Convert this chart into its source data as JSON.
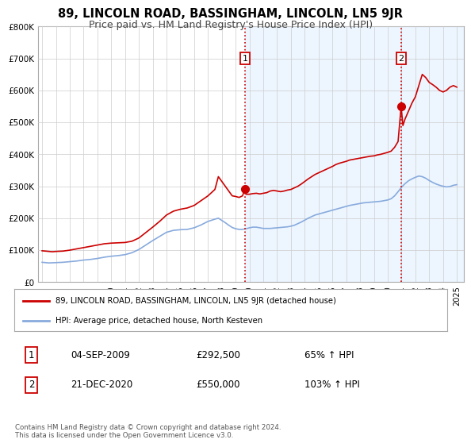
{
  "title": "89, LINCOLN ROAD, BASSINGHAM, LINCOLN, LN5 9JR",
  "subtitle": "Price paid vs. HM Land Registry's House Price Index (HPI)",
  "title_fontsize": 10.5,
  "subtitle_fontsize": 9,
  "ylabel_ticks": [
    "£0",
    "£100K",
    "£200K",
    "£300K",
    "£400K",
    "£500K",
    "£600K",
    "£700K",
    "£800K"
  ],
  "ytick_values": [
    0,
    100000,
    200000,
    300000,
    400000,
    500000,
    600000,
    700000,
    800000
  ],
  "ylim": [
    0,
    800000
  ],
  "xlim_start": 1994.7,
  "xlim_end": 2025.5,
  "xticks": [
    1995,
    1996,
    1997,
    1998,
    1999,
    2000,
    2001,
    2002,
    2003,
    2004,
    2005,
    2006,
    2007,
    2008,
    2009,
    2010,
    2011,
    2012,
    2013,
    2014,
    2015,
    2016,
    2017,
    2018,
    2019,
    2020,
    2021,
    2022,
    2023,
    2024,
    2025
  ],
  "grid_color": "#cccccc",
  "background_color": "#ffffff",
  "sale1_x": 2009.67,
  "sale1_y": 292500,
  "sale2_x": 2020.97,
  "sale2_y": 550000,
  "vline1_x": 2009.67,
  "vline2_x": 2020.97,
  "vline_color": "#cc0000",
  "shade_color": "#ddeeff",
  "red_line_color": "#cc0000",
  "blue_line_color": "#88aadd",
  "legend_red_label": "89, LINCOLN ROAD, BASSINGHAM, LINCOLN, LN5 9JR (detached house)",
  "legend_blue_label": "HPI: Average price, detached house, North Kesteven",
  "annotation1_date": "04-SEP-2009",
  "annotation1_price": "£292,500",
  "annotation1_hpi": "65% ↑ HPI",
  "annotation2_date": "21-DEC-2020",
  "annotation2_price": "£550,000",
  "annotation2_hpi": "103% ↑ HPI",
  "footer": "Contains HM Land Registry data © Crown copyright and database right 2024.\nThis data is licensed under the Open Government Licence v3.0.",
  "red_hpi_data": [
    [
      1995.0,
      98000
    ],
    [
      1995.25,
      97000
    ],
    [
      1995.5,
      96000
    ],
    [
      1995.75,
      95000
    ],
    [
      1996.0,
      96000
    ],
    [
      1996.5,
      97000
    ],
    [
      1997.0,
      100000
    ],
    [
      1997.5,
      104000
    ],
    [
      1998.0,
      108000
    ],
    [
      1998.5,
      112000
    ],
    [
      1999.0,
      116000
    ],
    [
      1999.5,
      120000
    ],
    [
      2000.0,
      122000
    ],
    [
      2000.5,
      123000
    ],
    [
      2001.0,
      124000
    ],
    [
      2001.5,
      128000
    ],
    [
      2002.0,
      138000
    ],
    [
      2002.5,
      155000
    ],
    [
      2003.0,
      172000
    ],
    [
      2003.5,
      190000
    ],
    [
      2004.0,
      210000
    ],
    [
      2004.5,
      222000
    ],
    [
      2005.0,
      228000
    ],
    [
      2005.5,
      232000
    ],
    [
      2006.0,
      240000
    ],
    [
      2006.5,
      255000
    ],
    [
      2007.0,
      270000
    ],
    [
      2007.25,
      280000
    ],
    [
      2007.5,
      290000
    ],
    [
      2007.75,
      330000
    ],
    [
      2008.0,
      315000
    ],
    [
      2008.25,
      300000
    ],
    [
      2008.5,
      285000
    ],
    [
      2008.75,
      270000
    ],
    [
      2009.0,
      268000
    ],
    [
      2009.25,
      265000
    ],
    [
      2009.5,
      270000
    ],
    [
      2009.67,
      292500
    ],
    [
      2009.75,
      275000
    ],
    [
      2010.0,
      275000
    ],
    [
      2010.25,
      277000
    ],
    [
      2010.5,
      278000
    ],
    [
      2010.75,
      276000
    ],
    [
      2011.0,
      278000
    ],
    [
      2011.25,
      280000
    ],
    [
      2011.5,
      285000
    ],
    [
      2011.75,
      287000
    ],
    [
      2012.0,
      285000
    ],
    [
      2012.25,
      283000
    ],
    [
      2012.5,
      285000
    ],
    [
      2012.75,
      288000
    ],
    [
      2013.0,
      290000
    ],
    [
      2013.25,
      295000
    ],
    [
      2013.5,
      300000
    ],
    [
      2013.75,
      307000
    ],
    [
      2014.0,
      315000
    ],
    [
      2014.25,
      323000
    ],
    [
      2014.5,
      330000
    ],
    [
      2014.75,
      337000
    ],
    [
      2015.0,
      342000
    ],
    [
      2015.25,
      347000
    ],
    [
      2015.5,
      352000
    ],
    [
      2015.75,
      357000
    ],
    [
      2016.0,
      362000
    ],
    [
      2016.25,
      368000
    ],
    [
      2016.5,
      372000
    ],
    [
      2016.75,
      375000
    ],
    [
      2017.0,
      378000
    ],
    [
      2017.25,
      382000
    ],
    [
      2017.5,
      384000
    ],
    [
      2017.75,
      386000
    ],
    [
      2018.0,
      388000
    ],
    [
      2018.25,
      390000
    ],
    [
      2018.5,
      392000
    ],
    [
      2018.75,
      394000
    ],
    [
      2019.0,
      395000
    ],
    [
      2019.25,
      398000
    ],
    [
      2019.5,
      400000
    ],
    [
      2019.75,
      403000
    ],
    [
      2020.0,
      406000
    ],
    [
      2020.25,
      410000
    ],
    [
      2020.5,
      422000
    ],
    [
      2020.75,
      440000
    ],
    [
      2020.97,
      550000
    ],
    [
      2021.1,
      490000
    ],
    [
      2021.25,
      510000
    ],
    [
      2021.5,
      535000
    ],
    [
      2021.75,
      560000
    ],
    [
      2022.0,
      580000
    ],
    [
      2022.25,
      615000
    ],
    [
      2022.5,
      650000
    ],
    [
      2022.75,
      640000
    ],
    [
      2023.0,
      625000
    ],
    [
      2023.25,
      618000
    ],
    [
      2023.5,
      610000
    ],
    [
      2023.75,
      600000
    ],
    [
      2024.0,
      595000
    ],
    [
      2024.25,
      600000
    ],
    [
      2024.5,
      610000
    ],
    [
      2024.75,
      615000
    ],
    [
      2025.0,
      610000
    ]
  ],
  "blue_hpi_data": [
    [
      1995.0,
      62000
    ],
    [
      1995.5,
      60000
    ],
    [
      1996.0,
      61000
    ],
    [
      1996.5,
      62000
    ],
    [
      1997.0,
      64000
    ],
    [
      1997.5,
      66000
    ],
    [
      1998.0,
      69000
    ],
    [
      1998.5,
      71000
    ],
    [
      1999.0,
      74000
    ],
    [
      1999.5,
      78000
    ],
    [
      2000.0,
      81000
    ],
    [
      2000.5,
      83000
    ],
    [
      2001.0,
      86000
    ],
    [
      2001.5,
      92000
    ],
    [
      2002.0,
      102000
    ],
    [
      2002.5,
      116000
    ],
    [
      2003.0,
      130000
    ],
    [
      2003.5,
      143000
    ],
    [
      2004.0,
      156000
    ],
    [
      2004.5,
      162000
    ],
    [
      2005.0,
      164000
    ],
    [
      2005.5,
      165000
    ],
    [
      2006.0,
      170000
    ],
    [
      2006.5,
      179000
    ],
    [
      2007.0,
      190000
    ],
    [
      2007.5,
      197000
    ],
    [
      2007.75,
      200000
    ],
    [
      2008.0,
      193000
    ],
    [
      2008.25,
      186000
    ],
    [
      2008.5,
      178000
    ],
    [
      2008.75,
      171000
    ],
    [
      2009.0,
      167000
    ],
    [
      2009.25,
      165000
    ],
    [
      2009.5,
      165000
    ],
    [
      2009.75,
      167000
    ],
    [
      2010.0,
      170000
    ],
    [
      2010.25,
      172000
    ],
    [
      2010.5,
      172000
    ],
    [
      2010.75,
      170000
    ],
    [
      2011.0,
      168000
    ],
    [
      2011.25,
      168000
    ],
    [
      2011.5,
      168000
    ],
    [
      2011.75,
      169000
    ],
    [
      2012.0,
      170000
    ],
    [
      2012.25,
      171000
    ],
    [
      2012.5,
      172000
    ],
    [
      2012.75,
      173000
    ],
    [
      2013.0,
      175000
    ],
    [
      2013.25,
      178000
    ],
    [
      2013.5,
      183000
    ],
    [
      2013.75,
      188000
    ],
    [
      2014.0,
      194000
    ],
    [
      2014.25,
      200000
    ],
    [
      2014.5,
      205000
    ],
    [
      2014.75,
      210000
    ],
    [
      2015.0,
      213000
    ],
    [
      2015.25,
      216000
    ],
    [
      2015.5,
      219000
    ],
    [
      2015.75,
      222000
    ],
    [
      2016.0,
      225000
    ],
    [
      2016.25,
      228000
    ],
    [
      2016.5,
      231000
    ],
    [
      2016.75,
      234000
    ],
    [
      2017.0,
      237000
    ],
    [
      2017.25,
      240000
    ],
    [
      2017.5,
      242000
    ],
    [
      2017.75,
      244000
    ],
    [
      2018.0,
      246000
    ],
    [
      2018.25,
      248000
    ],
    [
      2018.5,
      249000
    ],
    [
      2018.75,
      250000
    ],
    [
      2019.0,
      251000
    ],
    [
      2019.25,
      252000
    ],
    [
      2019.5,
      253000
    ],
    [
      2019.75,
      255000
    ],
    [
      2020.0,
      257000
    ],
    [
      2020.25,
      261000
    ],
    [
      2020.5,
      270000
    ],
    [
      2020.75,
      283000
    ],
    [
      2021.0,
      297000
    ],
    [
      2021.25,
      308000
    ],
    [
      2021.5,
      317000
    ],
    [
      2021.75,
      323000
    ],
    [
      2022.0,
      328000
    ],
    [
      2022.25,
      332000
    ],
    [
      2022.5,
      330000
    ],
    [
      2022.75,
      325000
    ],
    [
      2023.0,
      318000
    ],
    [
      2023.25,
      312000
    ],
    [
      2023.5,
      307000
    ],
    [
      2023.75,
      303000
    ],
    [
      2024.0,
      300000
    ],
    [
      2024.25,
      298000
    ],
    [
      2024.5,
      299000
    ],
    [
      2024.75,
      303000
    ],
    [
      2025.0,
      305000
    ]
  ]
}
